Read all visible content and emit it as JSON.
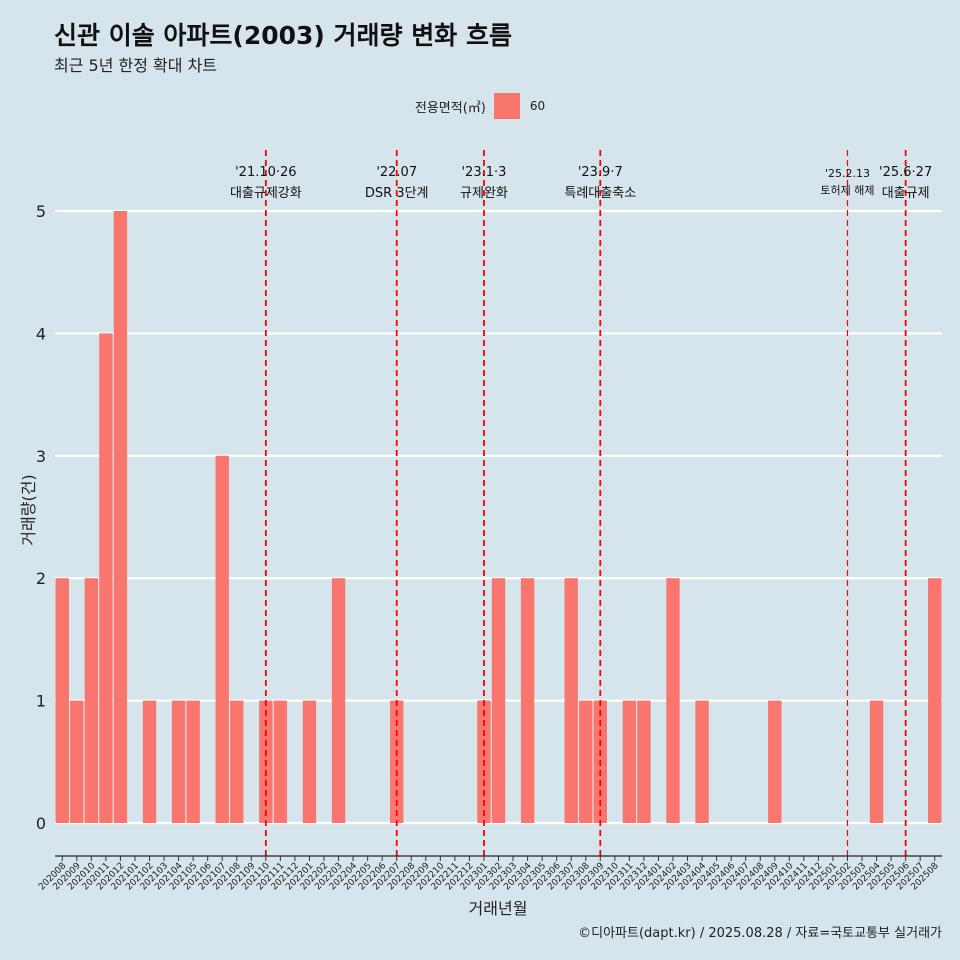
{
  "header": {
    "title": "신관 이솔 아파트(2003) 거래량 변화 흐름",
    "subtitle": "최근 5년 한정 확대 차트"
  },
  "legend": {
    "title": "전용면적(㎡)",
    "item": "60",
    "color": "#f8766d"
  },
  "caption": "©디아파트(dapt.kr) / 2025.08.28 / 자료=국토교통부 실거래가",
  "chart_data": {
    "type": "bar",
    "xlabel": "거래년월",
    "ylabel": "거래량(건)",
    "ylim": [
      0,
      5
    ],
    "yticks": [
      0,
      1,
      2,
      3,
      4,
      5
    ],
    "grid": true,
    "legend_position": "top",
    "categories": [
      "202008",
      "202009",
      "202010",
      "202011",
      "202012",
      "202101",
      "202102",
      "202103",
      "202104",
      "202105",
      "202106",
      "202107",
      "202108",
      "202109",
      "202110",
      "202111",
      "202112",
      "202201",
      "202202",
      "202203",
      "202204",
      "202205",
      "202206",
      "202207",
      "202208",
      "202209",
      "202210",
      "202211",
      "202212",
      "202301",
      "202302",
      "202303",
      "202304",
      "202305",
      "202306",
      "202307",
      "202308",
      "202309",
      "202310",
      "202311",
      "202312",
      "202401",
      "202402",
      "202403",
      "202404",
      "202405",
      "202406",
      "202407",
      "202408",
      "202409",
      "202410",
      "202411",
      "202412",
      "202501",
      "202502",
      "202503",
      "202504",
      "202505",
      "202506",
      "202507",
      "202508"
    ],
    "series": [
      {
        "name": "60",
        "values": [
          2,
          1,
          2,
          4,
          5,
          0,
          1,
          0,
          1,
          1,
          0,
          3,
          1,
          0,
          1,
          1,
          0,
          1,
          0,
          2,
          0,
          0,
          0,
          1,
          0,
          0,
          0,
          0,
          0,
          1,
          2,
          0,
          2,
          0,
          0,
          2,
          1,
          1,
          0,
          1,
          1,
          0,
          2,
          0,
          1,
          0,
          0,
          0,
          0,
          1,
          0,
          0,
          0,
          0,
          0,
          0,
          1,
          0,
          0,
          0,
          2
        ]
      }
    ],
    "annotations": [
      {
        "x": "202110",
        "date": "'21.10·26",
        "label": "대출규제강화"
      },
      {
        "x": "202207",
        "date": "'22.07",
        "label": "DSR 3단계"
      },
      {
        "x": "202301",
        "date": "'23.1·3",
        "label": "규제완화"
      },
      {
        "x": "202309",
        "date": "'23.9·7",
        "label": "특례대출축소"
      },
      {
        "x": "202502",
        "date": "'25.2.13",
        "label": "토허제 해제"
      },
      {
        "x": "202506",
        "date": "'25.6·27",
        "label": "대출규제"
      }
    ]
  }
}
